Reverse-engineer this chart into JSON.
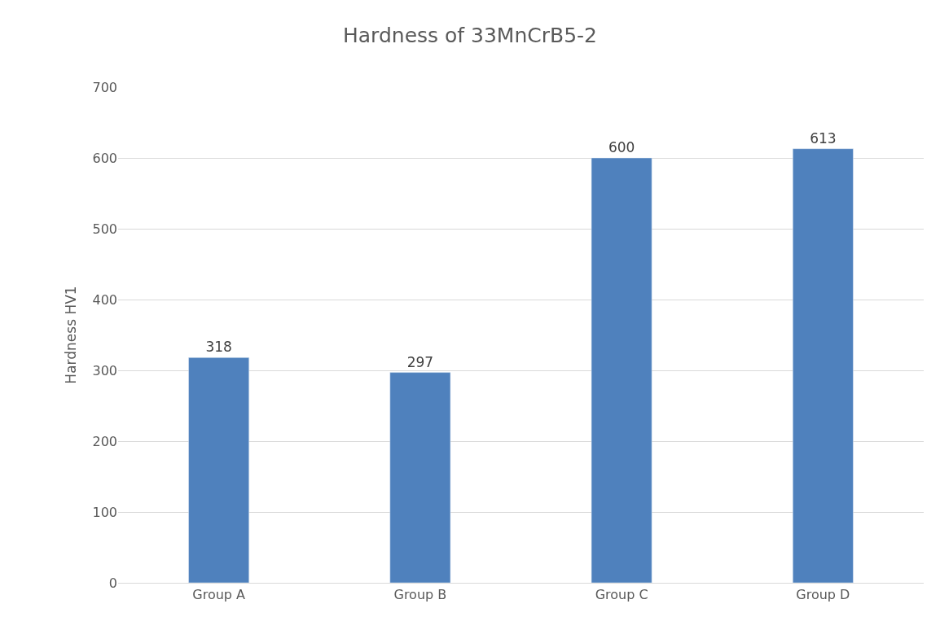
{
  "chart_data": {
    "type": "bar",
    "title": "Hardness of 33MnCrB5-2",
    "ylabel": "Hardness HV1",
    "categories": [
      "Group A",
      "Group B",
      "Group C",
      "Group D"
    ],
    "values": [
      318,
      297,
      600,
      613
    ],
    "color": "#4f81bd",
    "ylim": [
      0,
      700
    ],
    "yticks": [
      0,
      100,
      200,
      300,
      400,
      500,
      600,
      700
    ],
    "grid": "y",
    "data_labels": true,
    "legend": false
  }
}
